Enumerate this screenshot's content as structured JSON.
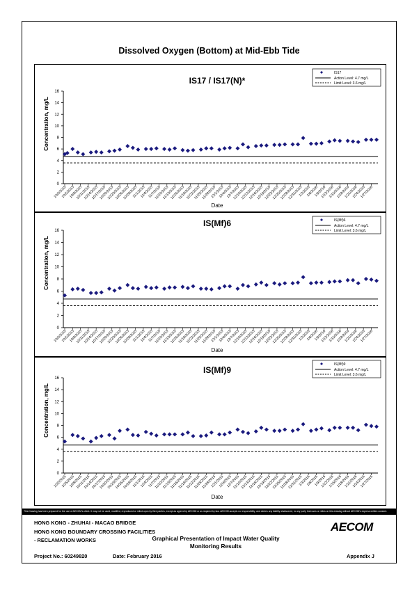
{
  "page": {
    "main_title": "Dissolved Oxygen (Bottom) at Mid-Ebb Tide",
    "disclaimer": "This Drawing has been prepared for the use of AECOM's client. It may not be used, modified, reproduced or relied upon by third parties, except as agreed by AECOM or as required by law. AECOM accepts no responsibility, and denies any liability whatsoever, to any party that uses or relies on this drawing without AECOM's express written consent."
  },
  "footer": {
    "line1": "HONG KONG - ZHUHAI - MACAO BRIDGE",
    "line2": "HONG KONG BOUNDARY CROSSING FACILITIES",
    "line3": "- RECLAMATION WORKS",
    "project": "Project No.: 60249820",
    "date": "Date: February 2016",
    "graphical_title": "Graphical Presentation of Impact Water Quality Monitoring Results",
    "appendix": "Appendix J",
    "logo": "AECOM"
  },
  "x_ticks": [
    "10/2/2015",
    "10/5/2015",
    "10/8/2015",
    "10/11/2015",
    "10/14/2015",
    "10/17/2015",
    "10/20/2015",
    "10/23/2015",
    "10/26/2015",
    "10/29/2015",
    "11/1/2015",
    "11/4/2015",
    "11/7/2015",
    "11/10/2015",
    "11/13/2015",
    "11/16/2015",
    "11/19/2015",
    "11/22/2015",
    "11/25/2015",
    "11/28/2015",
    "12/1/2015",
    "12/4/2015",
    "12/7/2015",
    "12/10/2015",
    "12/13/2015",
    "12/16/2015",
    "12/19/2015",
    "12/22/2015",
    "12/25/2015",
    "12/28/2015",
    "12/31/2015",
    "1/3/2016",
    "1/6/2016",
    "1/9/2016",
    "1/12/2016",
    "1/15/2016",
    "1/18/2016",
    "1/21/2016",
    "1/24/2016",
    "1/27/2016"
  ],
  "chart_data": [
    {
      "type": "scatter",
      "title": "IS17 / IS17(N)*",
      "xlabel": "Date",
      "ylabel": "Concentration, mg/L",
      "ylim": [
        0,
        16
      ],
      "xlim": [
        "10/2/2015",
        "1/29/2016"
      ],
      "y_ticks": [
        0,
        2,
        4,
        6,
        8,
        10,
        12,
        14,
        16
      ],
      "grid": false,
      "legend_position": "top-right",
      "series": [
        {
          "name": "IS17",
          "marker": "diamond",
          "color": "#1a1a7e",
          "x": [
            "10/2/2015",
            "10/3/2015",
            "10/5/2015",
            "10/7/2015",
            "10/9/2015",
            "10/12/2015",
            "10/14/2015",
            "10/16/2015",
            "10/19/2015",
            "10/21/2015",
            "10/23/2015",
            "10/26/2015",
            "10/28/2015",
            "10/30/2015",
            "11/2/2015",
            "11/4/2015",
            "11/6/2015",
            "11/9/2015",
            "11/11/2015",
            "11/13/2015",
            "11/16/2015",
            "11/18/2015",
            "11/20/2015",
            "11/23/2015",
            "11/25/2015",
            "11/27/2015",
            "11/30/2015",
            "12/2/2015",
            "12/4/2015",
            "12/7/2015",
            "12/9/2015",
            "12/11/2015",
            "12/14/2015",
            "12/16/2015",
            "12/18/2015",
            "12/21/2015",
            "12/23/2015",
            "12/25/2015",
            "12/28/2015",
            "12/30/2015",
            "1/1/2016",
            "1/4/2016",
            "1/6/2016",
            "1/8/2016",
            "1/11/2016",
            "1/13/2016",
            "1/15/2016",
            "1/18/2016",
            "1/20/2016",
            "1/22/2016",
            "1/25/2016",
            "1/27/2016",
            "1/29/2016"
          ],
          "y": [
            5.1,
            5.3,
            6.0,
            5.4,
            5.1,
            5.4,
            5.5,
            5.4,
            5.6,
            5.7,
            5.9,
            6.5,
            6.2,
            5.9,
            6.0,
            6.0,
            6.1,
            6.0,
            5.9,
            6.1,
            5.8,
            5.7,
            5.8,
            5.9,
            6.1,
            6.1,
            5.9,
            6.1,
            6.2,
            6.1,
            6.8,
            6.3,
            6.5,
            6.6,
            6.6,
            6.7,
            6.7,
            6.8,
            6.8,
            6.8,
            7.9,
            6.9,
            6.9,
            7.0,
            7.3,
            7.5,
            7.4,
            7.4,
            7.3,
            7.2,
            7.6,
            7.6,
            7.6
          ]
        }
      ],
      "reference_lines": [
        {
          "name": "Action Level: 4.7 mg/L",
          "y": 4.7,
          "style": "solid"
        },
        {
          "name": "Limit Level: 3.6 mg/L",
          "y": 3.6,
          "style": "dashed"
        }
      ]
    },
    {
      "type": "scatter",
      "title": "IS(Mf)6",
      "xlabel": "Date",
      "ylabel": "Concentration, mg/L",
      "ylim": [
        0,
        16
      ],
      "xlim": [
        "10/2/2015",
        "1/29/2016"
      ],
      "y_ticks": [
        0,
        2,
        4,
        6,
        8,
        10,
        12,
        14,
        16
      ],
      "grid": false,
      "legend_position": "top-right",
      "series": [
        {
          "name": "IS(Mf)6",
          "marker": "diamond",
          "color": "#1a1a7e",
          "x": [
            "10/2/2015",
            "10/5/2015",
            "10/7/2015",
            "10/9/2015",
            "10/12/2015",
            "10/14/2015",
            "10/16/2015",
            "10/19/2015",
            "10/21/2015",
            "10/23/2015",
            "10/26/2015",
            "10/28/2015",
            "10/30/2015",
            "11/2/2015",
            "11/4/2015",
            "11/6/2015",
            "11/9/2015",
            "11/11/2015",
            "11/13/2015",
            "11/16/2015",
            "11/18/2015",
            "11/20/2015",
            "11/23/2015",
            "11/25/2015",
            "11/27/2015",
            "11/30/2015",
            "12/2/2015",
            "12/4/2015",
            "12/7/2015",
            "12/9/2015",
            "12/11/2015",
            "12/14/2015",
            "12/16/2015",
            "12/18/2015",
            "12/21/2015",
            "12/23/2015",
            "12/25/2015",
            "12/28/2015",
            "12/30/2015",
            "1/1/2016",
            "1/4/2016",
            "1/6/2016",
            "1/8/2016",
            "1/11/2016",
            "1/13/2016",
            "1/15/2016",
            "1/18/2016",
            "1/20/2016",
            "1/22/2016",
            "1/25/2016",
            "1/27/2016",
            "1/29/2016"
          ],
          "y": [
            5.3,
            6.3,
            6.4,
            6.2,
            5.7,
            5.7,
            5.8,
            6.4,
            6.1,
            6.5,
            7.0,
            6.5,
            6.4,
            6.7,
            6.5,
            6.6,
            6.4,
            6.6,
            6.6,
            6.7,
            6.5,
            6.8,
            6.4,
            6.4,
            6.3,
            6.5,
            6.8,
            6.8,
            6.4,
            7.0,
            6.8,
            7.1,
            7.4,
            7.0,
            7.3,
            7.1,
            7.3,
            7.3,
            7.4,
            8.3,
            7.3,
            7.4,
            7.4,
            7.5,
            7.6,
            7.6,
            7.8,
            7.8,
            7.3,
            8.0,
            7.9,
            7.7
          ]
        }
      ],
      "reference_lines": [
        {
          "name": "Action Level: 4.7 mg/L",
          "y": 4.7,
          "style": "solid"
        },
        {
          "name": "Limit Level: 3.6 mg/L",
          "y": 3.6,
          "style": "dashed"
        }
      ]
    },
    {
      "type": "scatter",
      "title": "IS(Mf)9",
      "xlabel": "Date",
      "ylabel": "Concentration, mg/L",
      "ylim": [
        0,
        16
      ],
      "xlim": [
        "10/2/2015",
        "1/29/2016"
      ],
      "y_ticks": [
        0,
        2,
        4,
        6,
        8,
        10,
        12,
        14,
        16
      ],
      "grid": false,
      "legend_position": "top-right",
      "series": [
        {
          "name": "IS(Mf)9",
          "marker": "diamond",
          "color": "#1a1a7e",
          "x": [
            "10/2/2015",
            "10/5/2015",
            "10/7/2015",
            "10/9/2015",
            "10/12/2015",
            "10/14/2015",
            "10/16/2015",
            "10/19/2015",
            "10/21/2015",
            "10/23/2015",
            "10/26/2015",
            "10/28/2015",
            "10/30/2015",
            "11/2/2015",
            "11/4/2015",
            "11/6/2015",
            "11/9/2015",
            "11/11/2015",
            "11/13/2015",
            "11/16/2015",
            "11/18/2015",
            "11/20/2015",
            "11/23/2015",
            "11/25/2015",
            "11/27/2015",
            "11/30/2015",
            "12/2/2015",
            "12/4/2015",
            "12/7/2015",
            "12/9/2015",
            "12/11/2015",
            "12/14/2015",
            "12/16/2015",
            "12/18/2015",
            "12/21/2015",
            "12/23/2015",
            "12/25/2015",
            "12/28/2015",
            "12/30/2015",
            "1/1/2016",
            "1/4/2016",
            "1/6/2016",
            "1/8/2016",
            "1/11/2016",
            "1/13/2016",
            "1/15/2016",
            "1/18/2016",
            "1/20/2016",
            "1/22/2016",
            "1/25/2016",
            "1/27/2016",
            "1/29/2016"
          ],
          "y": [
            5.3,
            6.4,
            6.2,
            5.8,
            5.3,
            5.9,
            6.2,
            6.4,
            5.8,
            7.1,
            7.3,
            6.4,
            6.3,
            6.9,
            6.6,
            6.3,
            6.5,
            6.5,
            6.5,
            6.5,
            6.8,
            6.2,
            6.2,
            6.3,
            6.8,
            6.5,
            6.5,
            6.8,
            7.3,
            6.9,
            6.7,
            7.0,
            7.6,
            7.3,
            7.1,
            7.1,
            7.3,
            7.1,
            7.3,
            8.2,
            7.1,
            7.3,
            7.5,
            7.2,
            7.6,
            7.6,
            7.6,
            7.6,
            7.2,
            8.1,
            7.9,
            7.8
          ]
        }
      ],
      "reference_lines": [
        {
          "name": "Action Level: 4.7 mg/L",
          "y": 4.7,
          "style": "solid"
        },
        {
          "name": "Limit Level: 3.6 mg/L",
          "y": 3.6,
          "style": "dashed"
        }
      ]
    }
  ]
}
